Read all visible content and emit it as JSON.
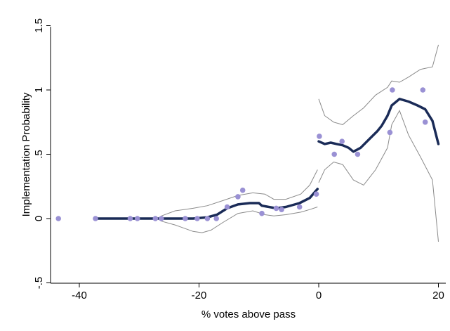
{
  "chart_data": {
    "type": "scatter",
    "xlabel": "% votes above pass",
    "ylabel": "Implementation Probability",
    "xlim": [
      -46,
      21
    ],
    "ylim": [
      -0.5,
      1.5
    ],
    "xticks": [
      -40,
      -20,
      0,
      20
    ],
    "xtick_labels": [
      "-40",
      "-20",
      "0",
      "20"
    ],
    "yticks": [
      -0.5,
      0,
      0.5,
      1,
      1.5
    ],
    "ytick_labels": [
      "-.5",
      "0",
      ".5",
      "1",
      "1.5"
    ],
    "grid": false,
    "legend": "none",
    "colors": {
      "points": "#9a91d4",
      "fit": "#1a2b57",
      "ci": "#8a8a8a"
    },
    "points": {
      "x": [
        -43.5,
        -37.3,
        -31.5,
        -30.3,
        -27.3,
        -26.3,
        -22.3,
        -20.3,
        -18.6,
        -17.1,
        -15.3,
        -13.5,
        -12.7,
        -9.5,
        -7.1,
        -6.2,
        -3.2,
        -0.4,
        0.1,
        2.6,
        3.9,
        6.5,
        11.9,
        12.3,
        17.4,
        17.8
      ],
      "y": [
        0.0,
        0.0,
        0.0,
        0.0,
        0.0,
        0.0,
        0.0,
        0.0,
        0.0,
        0.0,
        0.09,
        0.17,
        0.22,
        0.04,
        0.08,
        0.07,
        0.09,
        0.19,
        0.64,
        0.5,
        0.6,
        0.5,
        0.67,
        1.0,
        1.0,
        0.75
      ]
    },
    "series": [
      {
        "x": [
          -37.3,
          -30,
          -25,
          -21,
          -18.6,
          -17,
          -15.3,
          -13.5,
          -11.5,
          -10,
          -9.5,
          -7.1,
          -5.5,
          -3.2,
          -1.5,
          -0.2
        ],
        "y": [
          0.0,
          0.0,
          0.0,
          0.0,
          0.01,
          0.03,
          0.08,
          0.11,
          0.12,
          0.12,
          0.1,
          0.08,
          0.09,
          0.12,
          0.16,
          0.23
        ]
      },
      {
        "x": [
          0,
          1,
          2,
          3,
          4,
          5,
          5.8,
          7,
          8.5,
          9.8,
          10.5,
          11.5,
          12.2,
          13.5,
          15,
          16.5,
          17.8,
          19,
          20
        ],
        "y": [
          0.6,
          0.58,
          0.59,
          0.58,
          0.57,
          0.55,
          0.52,
          0.55,
          0.62,
          0.68,
          0.72,
          0.8,
          0.88,
          0.93,
          0.91,
          0.88,
          0.85,
          0.76,
          0.58
        ]
      }
    ],
    "ci": [
      {
        "upper": {
          "x": [
            -26.3,
            -24,
            -21,
            -18.6,
            -16,
            -13.5,
            -11,
            -9,
            -7.5,
            -5.5,
            -3,
            -1.5,
            -0.2
          ],
          "y": [
            0.02,
            0.06,
            0.08,
            0.1,
            0.14,
            0.18,
            0.2,
            0.19,
            0.15,
            0.15,
            0.19,
            0.26,
            0.38
          ]
        },
        "lower": {
          "x": [
            -26.3,
            -24,
            -21,
            -19.5,
            -18,
            -16,
            -13.5,
            -11,
            -9,
            -7.5,
            -5.5,
            -3,
            -1.5,
            -0.2
          ],
          "y": [
            -0.02,
            -0.05,
            -0.1,
            -0.11,
            -0.09,
            -0.03,
            0.04,
            0.06,
            0.03,
            0.02,
            0.03,
            0.05,
            0.07,
            0.09
          ]
        }
      },
      {
        "upper": {
          "x": [
            0,
            1,
            2.5,
            4,
            5.8,
            7.5,
            9.5,
            11.5,
            12.2,
            13.5,
            15,
            17,
            19,
            20
          ],
          "y": [
            0.93,
            0.8,
            0.75,
            0.73,
            0.8,
            0.86,
            0.96,
            1.02,
            1.07,
            1.06,
            1.1,
            1.16,
            1.18,
            1.35
          ]
        },
        "lower": {
          "x": [
            0,
            1,
            2.5,
            4,
            5.8,
            7.5,
            9.5,
            11.5,
            12.2,
            13.5,
            15,
            17,
            19,
            20
          ],
          "y": [
            0.28,
            0.38,
            0.44,
            0.42,
            0.3,
            0.26,
            0.38,
            0.55,
            0.73,
            0.84,
            0.65,
            0.48,
            0.3,
            -0.18
          ]
        }
      }
    ]
  }
}
